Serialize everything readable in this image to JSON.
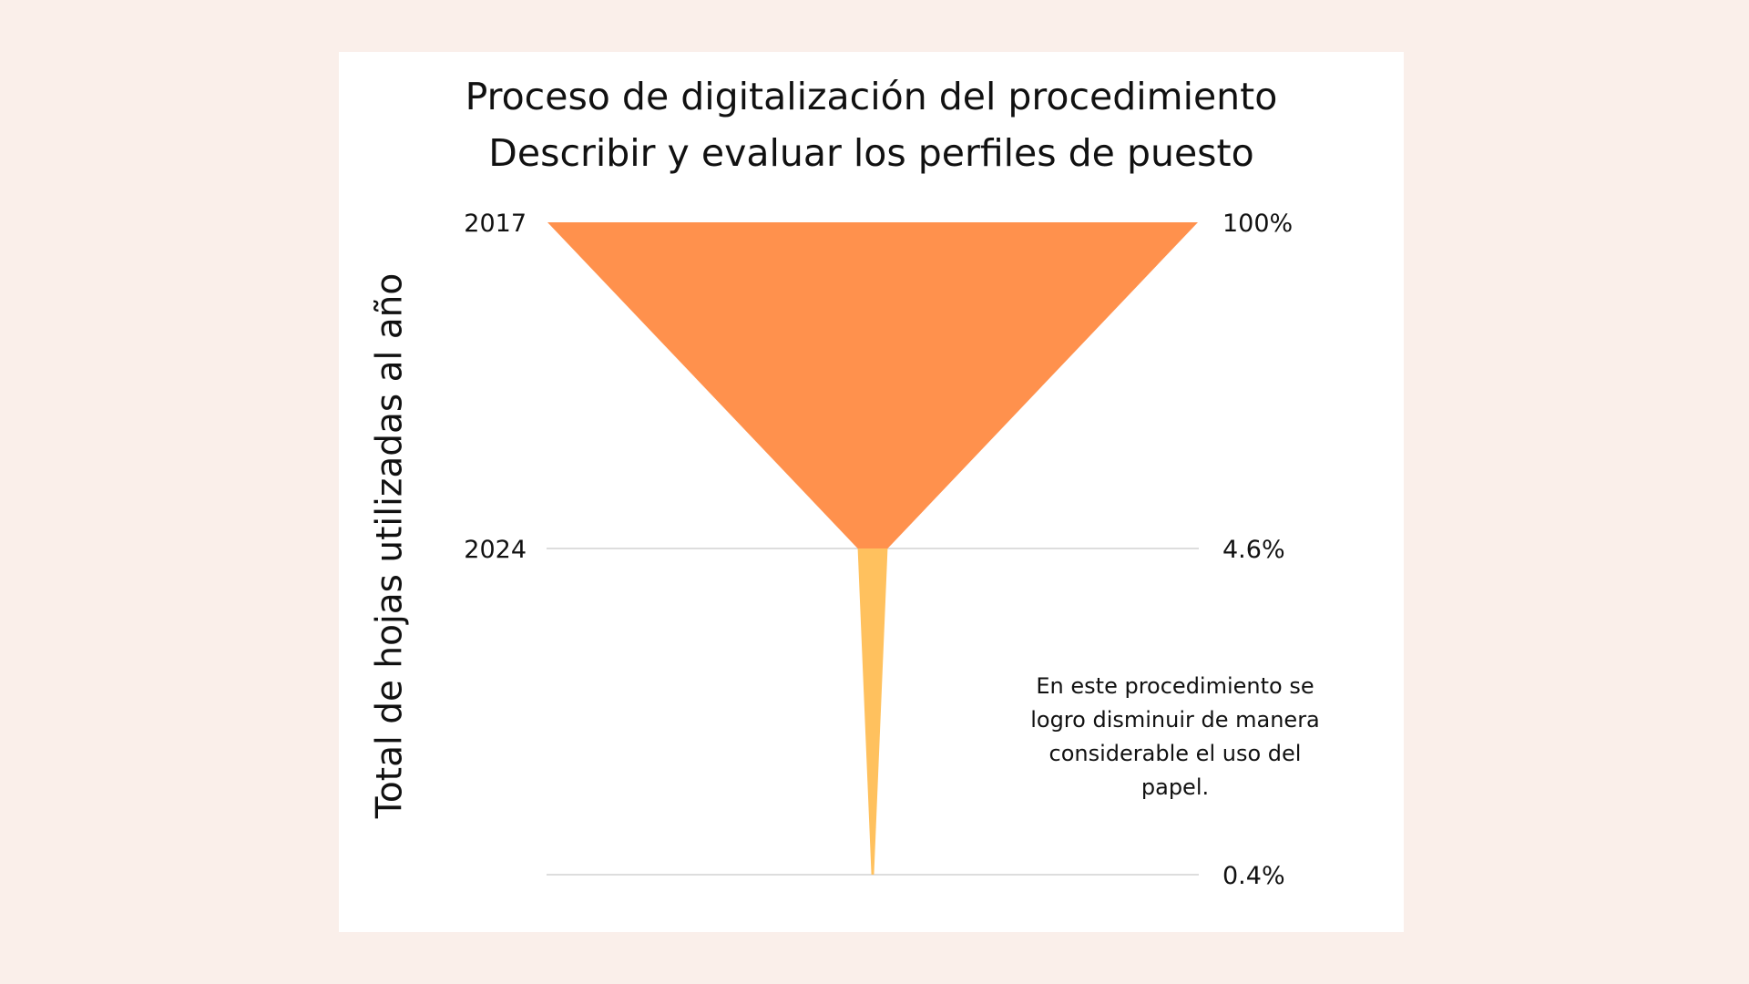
{
  "chart_data": {
    "type": "funnel",
    "title_lines": [
      "Proceso de digitalización del procedimiento",
      "Describir y evaluar los perfiles de puesto"
    ],
    "ylabel": "Total de hojas utilizadas al año",
    "stages": [
      {
        "category": "2017",
        "value": 100,
        "label": "100%",
        "color": "#FF914D"
      },
      {
        "category": "2024",
        "value": 4.6,
        "label": "4.6%",
        "color": "#FFC15E"
      },
      {
        "category": "",
        "value": 0.4,
        "label": "0.4%"
      }
    ],
    "annotation": "En este procedimiento se logro disminuir de manera considerable el uso del papel.",
    "gridlines": true,
    "gridline_color": "#DDDDDD"
  }
}
